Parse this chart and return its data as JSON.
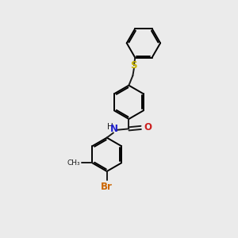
{
  "background_color": "#ebebeb",
  "bond_color": "#1a1a1a",
  "bond_lw": 1.4,
  "S_color": "#c8b400",
  "N_color": "#2020cc",
  "O_color": "#cc2020",
  "Br_color": "#cc6600",
  "Me_color": "#1a1a1a",
  "figsize": [
    3.0,
    3.0
  ],
  "dpi": 100,
  "xlim": [
    0,
    10
  ],
  "ylim": [
    0,
    10
  ]
}
